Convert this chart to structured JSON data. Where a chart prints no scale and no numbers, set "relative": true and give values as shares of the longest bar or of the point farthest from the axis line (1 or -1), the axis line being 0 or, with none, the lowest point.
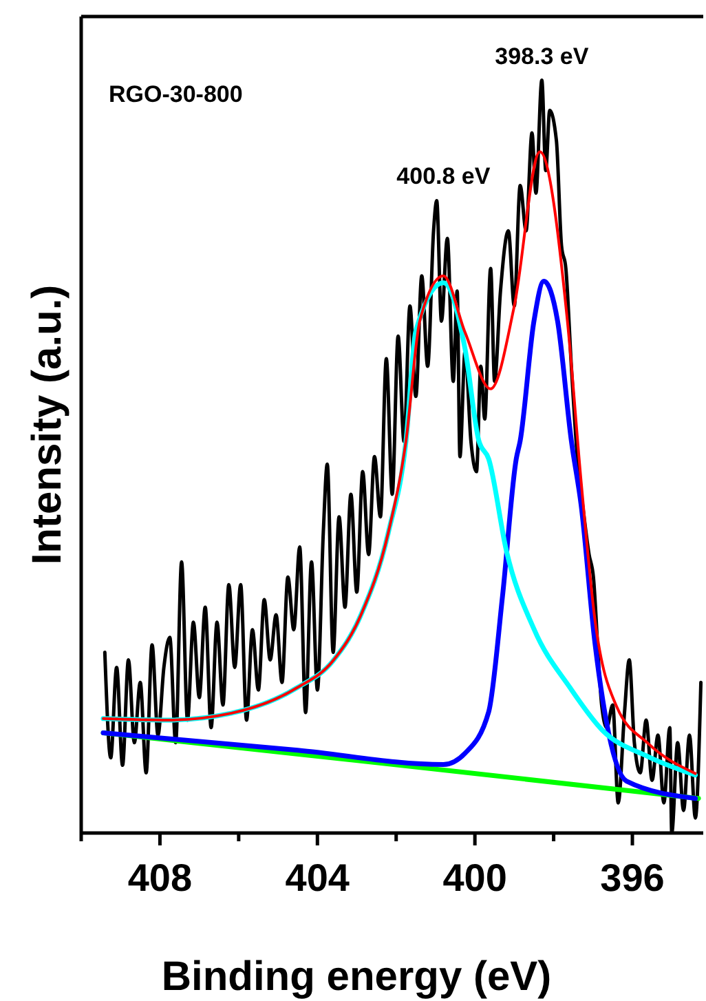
{
  "chart_data": {
    "type": "line",
    "relative": true,
    "xlabel": "Binding energy (eV)",
    "ylabel": "Intensity (a.u.)",
    "xlim": [
      410,
      394.2
    ],
    "xticks": [
      {
        "value": 410,
        "label": null
      },
      408,
      {
        "value": 406,
        "label": null
      },
      404,
      {
        "value": 402,
        "label": null
      },
      400,
      {
        "value": 398,
        "label": null
      },
      396
    ],
    "tick_labels": "x",
    "marker": "none",
    "line_style": "solid",
    "annotations": [
      "RGO-30-800",
      {
        "text": "400.8 eV",
        "x": 400.8,
        "y": 0.84
      },
      {
        "text": "398.3 eV",
        "x": 398.3,
        "y": 1.0
      }
    ],
    "series": [
      {
        "color": "#000000",
        "x": [
          409.4,
          409.25,
          409.1,
          408.95,
          408.8,
          408.65,
          408.5,
          408.35,
          408.2,
          408.05,
          407.9,
          407.75,
          407.6,
          407.45,
          407.3,
          407.15,
          407.0,
          406.85,
          406.7,
          406.55,
          406.4,
          406.25,
          406.1,
          405.95,
          405.8,
          405.65,
          405.5,
          405.35,
          405.2,
          405.05,
          404.9,
          404.75,
          404.6,
          404.45,
          404.3,
          404.15,
          404.0,
          403.85,
          403.75,
          403.6,
          403.45,
          403.3,
          403.15,
          403.0,
          402.85,
          402.7,
          402.55,
          402.4,
          402.25,
          402.1,
          401.95,
          401.8,
          401.65,
          401.5,
          401.35,
          401.2,
          401.05,
          400.97,
          400.85,
          400.7,
          400.55,
          400.45,
          400.38,
          400.25,
          400.1,
          399.96,
          399.85,
          399.75,
          399.6,
          399.5,
          399.35,
          399.15,
          399.0,
          398.85,
          398.7,
          398.55,
          398.45,
          398.3,
          398.2,
          398.1,
          397.93,
          397.8,
          397.69,
          397.55,
          397.4,
          397.25,
          397.1,
          396.99,
          396.85,
          396.78,
          396.65,
          396.5,
          396.36,
          396.2,
          396.08,
          395.95,
          395.8,
          395.65,
          395.5,
          395.35,
          395.2,
          395.05,
          395.0,
          394.85,
          394.7,
          394.55,
          394.4,
          394.26
        ],
        "values": [
          0.24,
          0.1,
          0.22,
          0.09,
          0.23,
          0.12,
          0.2,
          0.08,
          0.25,
          0.13,
          0.22,
          0.26,
          0.12,
          0.36,
          0.15,
          0.28,
          0.18,
          0.3,
          0.14,
          0.28,
          0.17,
          0.33,
          0.22,
          0.33,
          0.15,
          0.27,
          0.19,
          0.31,
          0.23,
          0.29,
          0.2,
          0.34,
          0.27,
          0.38,
          0.16,
          0.36,
          0.19,
          0.4,
          0.49,
          0.24,
          0.42,
          0.3,
          0.45,
          0.32,
          0.48,
          0.37,
          0.5,
          0.42,
          0.63,
          0.45,
          0.66,
          0.52,
          0.7,
          0.58,
          0.74,
          0.62,
          0.8,
          0.84,
          0.68,
          0.79,
          0.6,
          0.72,
          0.5,
          0.64,
          0.52,
          0.48,
          0.62,
          0.55,
          0.75,
          0.6,
          0.72,
          0.8,
          0.7,
          0.86,
          0.8,
          0.93,
          0.85,
          1.0,
          0.88,
          0.96,
          0.92,
          0.78,
          0.75,
          0.62,
          0.5,
          0.43,
          0.37,
          0.34,
          0.22,
          0.17,
          0.14,
          0.17,
          0.04,
          0.16,
          0.23,
          0.12,
          0.08,
          0.15,
          0.07,
          0.13,
          0.04,
          0.14,
          0.0,
          0.12,
          0.03,
          0.13,
          0.02,
          0.2
        ]
      },
      {
        "color": "#00ff00",
        "x": [
          409.44,
          401.9,
          394.32
        ],
        "values": [
          0.133,
          0.09,
          0.046
        ]
      },
      {
        "color": "#0000ff",
        "x": [
          409.44,
          404.5,
          400.8,
          400.25,
          399.65,
          399.3,
          398.95,
          398.85,
          398.5,
          398.25,
          397.9,
          397.55,
          397.3,
          396.95,
          396.6,
          396.15,
          394.4
        ],
        "values": [
          0.133,
          0.11,
          0.091,
          0.106,
          0.161,
          0.314,
          0.497,
          0.521,
          0.68,
          0.733,
          0.68,
          0.521,
          0.435,
          0.252,
          0.132,
          0.069,
          0.046
        ]
      },
      {
        "color": "#00ffff",
        "x": [
          409.44,
          407.8,
          406.2,
          404.55,
          403.6,
          402.9,
          402.2,
          401.75,
          401.5,
          400.8,
          400.25,
          399.9,
          399.65,
          399.2,
          398.5,
          397.57,
          396.77,
          395.58,
          394.4
        ],
        "values": [
          0.152,
          0.15,
          0.159,
          0.192,
          0.229,
          0.289,
          0.399,
          0.521,
          0.667,
          0.731,
          0.643,
          0.521,
          0.497,
          0.375,
          0.271,
          0.192,
          0.137,
          0.101,
          0.077
        ]
      },
      {
        "color": "#ff0000",
        "x": [
          409.44,
          407.8,
          406.2,
          404.55,
          403.6,
          402.9,
          402.2,
          401.75,
          401.4,
          400.8,
          400.25,
          399.6,
          399.0,
          398.35,
          397.65,
          397.3,
          396.95,
          396.4,
          395.6,
          394.4
        ],
        "values": [
          0.152,
          0.15,
          0.159,
          0.192,
          0.229,
          0.289,
          0.399,
          0.521,
          0.68,
          0.74,
          0.665,
          0.59,
          0.7,
          0.905,
          0.68,
          0.466,
          0.283,
          0.168,
          0.119,
          0.079
        ]
      }
    ]
  }
}
